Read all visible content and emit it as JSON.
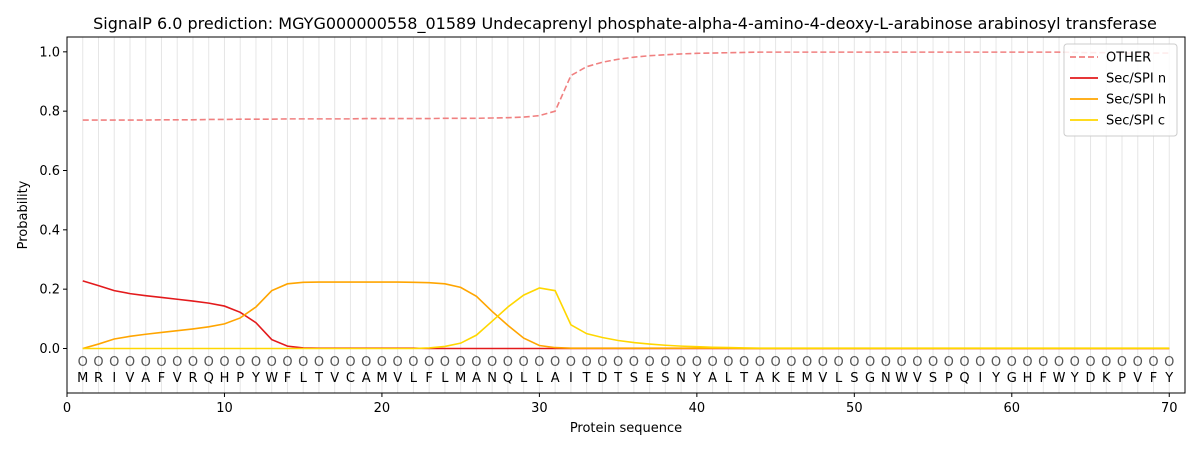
{
  "chart_data": {
    "type": "line",
    "title": "SignalP 6.0 prediction: MGYG000000558_01589 Undecaprenyl phosphate-alpha-4-amino-4-deoxy-L-arabinose arabinosyl transferase",
    "xlabel": "Protein sequence",
    "ylabel": "Probability",
    "xlim": [
      0,
      71
    ],
    "ylim": [
      -0.15,
      1.05
    ],
    "xticks": [
      0,
      10,
      20,
      30,
      40,
      50,
      60,
      70
    ],
    "yticks": [
      0.0,
      0.2,
      0.4,
      0.6,
      0.8,
      1.0
    ],
    "grid": "vertical lines at each residue",
    "legend_position": "upper right",
    "sequence": [
      "M",
      "R",
      "I",
      "V",
      "A",
      "F",
      "V",
      "R",
      "Q",
      "H",
      "P",
      "Y",
      "W",
      "F",
      "L",
      "T",
      "V",
      "C",
      "A",
      "M",
      "V",
      "L",
      "F",
      "L",
      "M",
      "A",
      "N",
      "Q",
      "L",
      "L",
      "A",
      "I",
      "T",
      "D",
      "T",
      "S",
      "E",
      "S",
      "N",
      "Y",
      "A",
      "L",
      "T",
      "A",
      "K",
      "E",
      "M",
      "V",
      "L",
      "S",
      "G",
      "N",
      "W",
      "V",
      "S",
      "P",
      "Q",
      "I",
      "Y",
      "G",
      "H",
      "F",
      "W",
      "Y",
      "D",
      "K",
      "P",
      "V",
      "F",
      "Y"
    ],
    "region_marker": "O",
    "series": [
      {
        "name": "OTHER",
        "color": "#f08080",
        "dash": true,
        "values": [
          0.77,
          0.77,
          0.77,
          0.77,
          0.77,
          0.771,
          0.771,
          0.771,
          0.772,
          0.772,
          0.773,
          0.773,
          0.773,
          0.774,
          0.774,
          0.774,
          0.774,
          0.774,
          0.775,
          0.775,
          0.775,
          0.775,
          0.775,
          0.776,
          0.776,
          0.776,
          0.777,
          0.778,
          0.78,
          0.785,
          0.8,
          0.92,
          0.95,
          0.965,
          0.975,
          0.982,
          0.987,
          0.99,
          0.993,
          0.995,
          0.996,
          0.997,
          0.998,
          0.999,
          0.999,
          0.999,
          0.999,
          0.999,
          0.999,
          0.999,
          0.999,
          0.999,
          0.999,
          0.999,
          0.999,
          0.999,
          0.999,
          0.999,
          0.999,
          0.999,
          0.999,
          0.999,
          0.999,
          0.998,
          0.997,
          0.997,
          0.996,
          0.996,
          0.996,
          0.996
        ]
      },
      {
        "name": "Sec/SPI n",
        "color": "#e31a1c",
        "dash": false,
        "values": [
          0.228,
          0.212,
          0.195,
          0.185,
          0.178,
          0.172,
          0.166,
          0.16,
          0.153,
          0.143,
          0.122,
          0.087,
          0.03,
          0.008,
          0.002,
          0.001,
          0.001,
          0.001,
          0.001,
          0.001,
          0.001,
          0.001,
          0.0,
          0.0,
          0.0,
          0.0,
          0.0,
          0.0,
          0.0,
          0.0,
          0.0,
          0.0,
          0.0,
          0.0,
          0.0,
          0.0,
          0.0,
          0.0,
          0.0,
          0.0,
          0.0,
          0.0,
          0.0,
          0.0,
          0.0,
          0.0,
          0.0,
          0.0,
          0.0,
          0.0,
          0.0,
          0.0,
          0.0,
          0.0,
          0.0,
          0.0,
          0.0,
          0.0,
          0.0,
          0.0,
          0.0,
          0.0,
          0.0,
          0.0,
          0.0,
          0.0,
          0.0,
          0.0,
          0.0,
          0.0
        ]
      },
      {
        "name": "Sec/SPI h",
        "color": "#ffa500",
        "dash": false,
        "values": [
          0.0,
          0.015,
          0.032,
          0.041,
          0.048,
          0.054,
          0.06,
          0.066,
          0.073,
          0.083,
          0.103,
          0.14,
          0.195,
          0.218,
          0.223,
          0.224,
          0.224,
          0.224,
          0.224,
          0.224,
          0.224,
          0.223,
          0.222,
          0.218,
          0.206,
          0.176,
          0.125,
          0.078,
          0.035,
          0.01,
          0.003,
          0.001,
          0.001,
          0.001,
          0.001,
          0.001,
          0.001,
          0.001,
          0.001,
          0.001,
          0.001,
          0.001,
          0.0,
          0.0,
          0.0,
          0.0,
          0.0,
          0.0,
          0.0,
          0.0,
          0.0,
          0.0,
          0.0,
          0.0,
          0.0,
          0.0,
          0.0,
          0.0,
          0.0,
          0.0,
          0.0,
          0.0,
          0.0,
          0.0,
          0.0,
          0.0,
          0.0,
          0.0,
          0.0,
          0.0
        ]
      },
      {
        "name": "Sec/SPI c",
        "color": "#ffd700",
        "dash": false,
        "values": [
          0.0,
          0.0,
          0.0,
          0.0,
          0.0,
          0.0,
          0.0,
          0.0,
          0.0,
          0.0,
          0.0,
          0.0,
          0.0,
          0.0,
          0.0,
          0.0,
          0.0,
          0.0,
          0.0,
          0.0,
          0.0,
          0.0,
          0.002,
          0.007,
          0.018,
          0.045,
          0.092,
          0.14,
          0.18,
          0.204,
          0.195,
          0.08,
          0.05,
          0.037,
          0.027,
          0.02,
          0.015,
          0.011,
          0.008,
          0.006,
          0.004,
          0.003,
          0.002,
          0.001,
          0.001,
          0.001,
          0.001,
          0.001,
          0.001,
          0.001,
          0.001,
          0.001,
          0.001,
          0.001,
          0.001,
          0.001,
          0.001,
          0.001,
          0.001,
          0.001,
          0.001,
          0.001,
          0.001,
          0.001,
          0.001,
          0.001,
          0.001,
          0.001,
          0.001,
          0.001
        ]
      }
    ]
  }
}
